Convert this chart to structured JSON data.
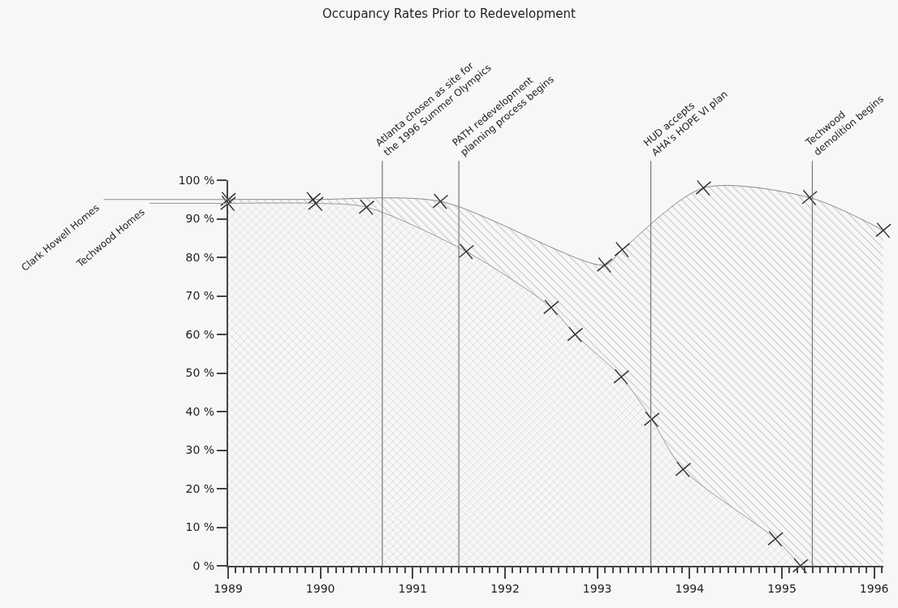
{
  "chart_data": {
    "type": "area",
    "title": "Occupancy Rates Prior to Redevelopment",
    "series": [
      {
        "name": "Clark Howell Homes",
        "color": "#8c8c8c",
        "x": [
          1989,
          1989.92,
          1991.3,
          1993.08,
          1993.27,
          1994.15,
          1995.3,
          1996.1
        ],
        "values": [
          95,
          95,
          94.5,
          78,
          82,
          98,
          95.5,
          87
        ]
      },
      {
        "name": "Techwood Homes",
        "color": "#9a9a9a",
        "x": [
          1989,
          1989.95,
          1990.5,
          1991.58,
          1992.5,
          1992.76,
          1993.26,
          1993.59,
          1993.93,
          1994.93,
          1995.2
        ],
        "values": [
          94,
          94,
          93,
          81.5,
          67,
          60,
          49,
          38,
          25,
          7,
          0
        ]
      }
    ],
    "xlim": [
      1989,
      1996.1
    ],
    "xticks": [
      1989,
      1990,
      1991,
      1992,
      1993,
      1994,
      1995,
      1996
    ],
    "ylim": [
      0,
      100
    ],
    "yticks": [
      {
        "value": 0,
        "label": "0 %"
      },
      {
        "value": 10,
        "label": "10 %"
      },
      {
        "value": 20,
        "label": "20 %"
      },
      {
        "value": 30,
        "label": "30 %"
      },
      {
        "value": 40,
        "label": "40 %"
      },
      {
        "value": 50,
        "label": "50 %"
      },
      {
        "value": 60,
        "label": "60 %"
      },
      {
        "value": 70,
        "label": "70 %"
      },
      {
        "value": 80,
        "label": "80 %"
      },
      {
        "value": 90,
        "label": "90 %"
      },
      {
        "value": 100,
        "label": "100 %"
      }
    ],
    "ref_lines": [
      {
        "axis": "x",
        "value": 1990.67,
        "label": "Atlanta chosen as site for\nthe 1996 Summer Olympics",
        "color": "#777777"
      },
      {
        "axis": "x",
        "value": 1991.5,
        "label": "PATH redevelopment\nplanning process begins",
        "color": "#777777"
      },
      {
        "axis": "x",
        "value": 1993.58,
        "label": "HUD accepts\nAHA's HOPE VI plan",
        "color": "#777777"
      },
      {
        "axis": "x",
        "value": 1995.33,
        "label": "Techwood\ndemolition begins",
        "color": "#777777"
      }
    ],
    "grid": false,
    "legend": false,
    "marker": "cross",
    "line_style": "solid"
  }
}
